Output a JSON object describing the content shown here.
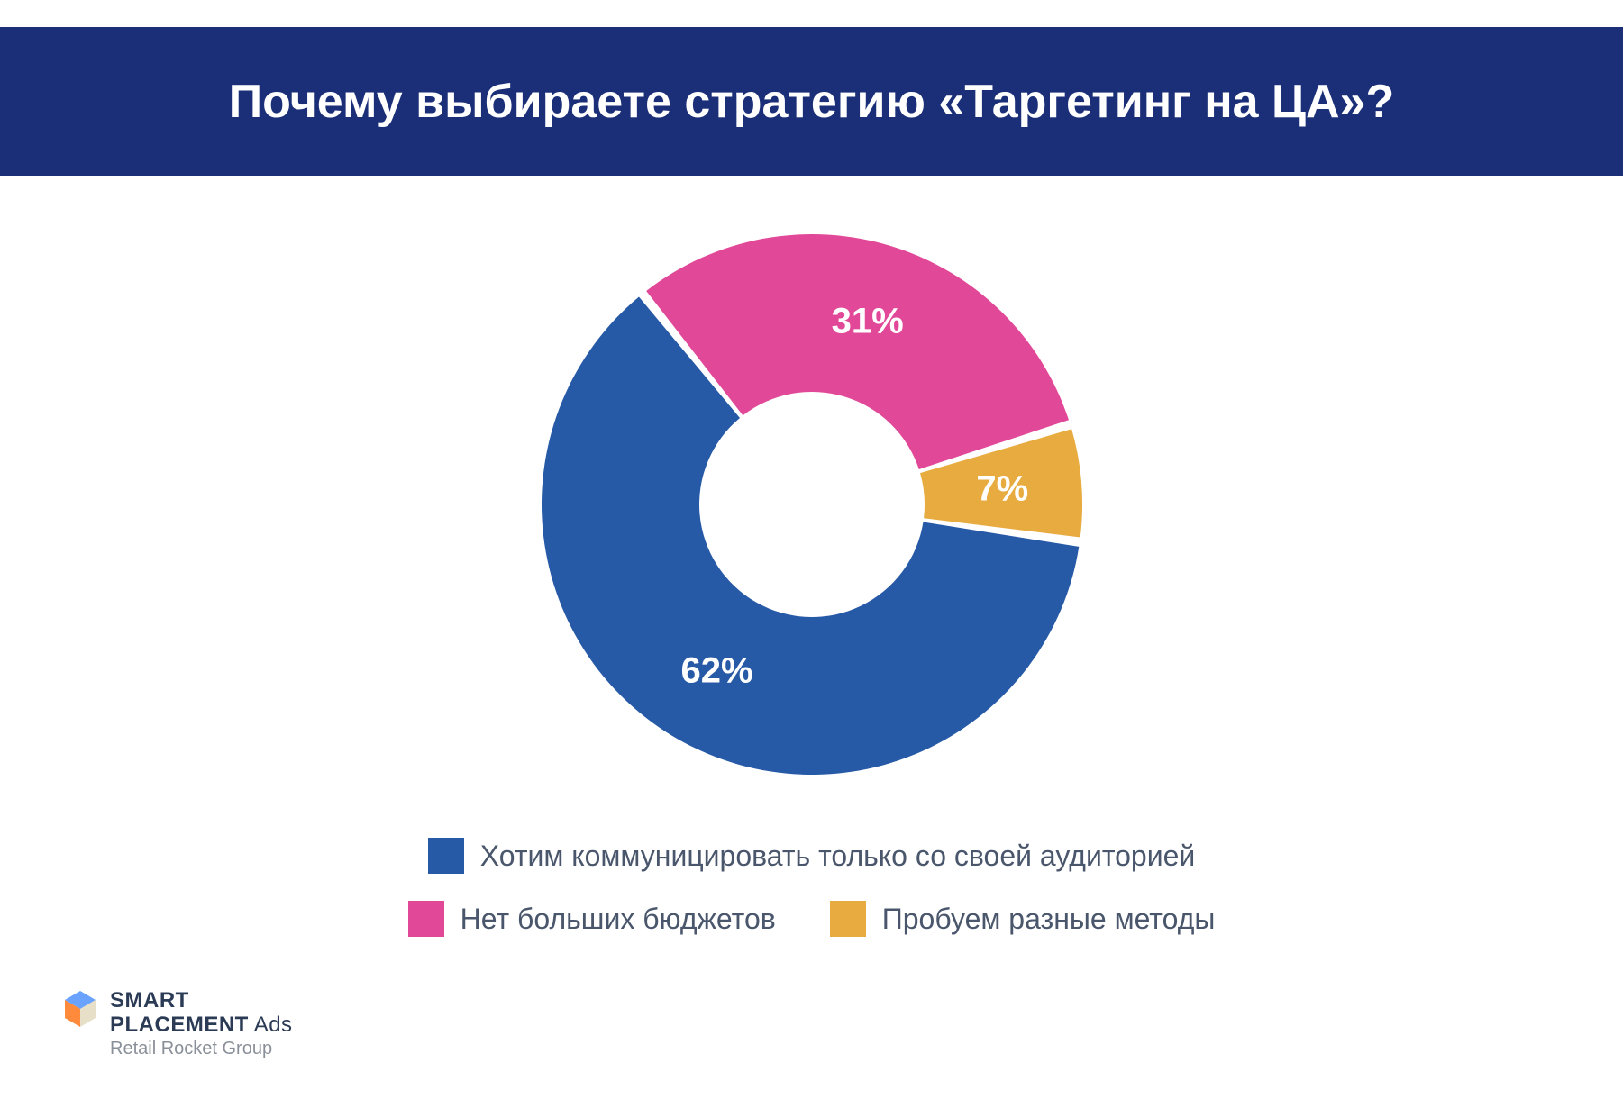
{
  "header": {
    "title": "Почему выбираете стратегию «Таргетинг на ЦА»?",
    "background_color": "#1b2f78",
    "text_color": "#ffffff",
    "title_fontsize": 52,
    "title_fontweight": 700
  },
  "chart": {
    "type": "donut",
    "outer_radius": 300,
    "inner_radius": 125,
    "background_color": "#ffffff",
    "label_fontsize": 40,
    "label_fontweight": 700,
    "label_color": "#ffffff",
    "slice_gap_deg": 2,
    "start_angle_deg": 98,
    "slices": [
      {
        "value": 62,
        "label": "62%",
        "color": "#2659a6",
        "legend": "Хотим коммуницировать только со своей аудиторией"
      },
      {
        "value": 31,
        "label": "31%",
        "color": "#e24898",
        "legend": "Нет больших бюджетов"
      },
      {
        "value": 7,
        "label": "7%",
        "color": "#e8ab3f",
        "legend": "Пробуем разные методы"
      }
    ]
  },
  "legend": {
    "swatch_size": 40,
    "text_color": "#49566b",
    "text_fontsize": 32
  },
  "logo": {
    "line1_a": "SMART",
    "line1_b": "PLACEMENT",
    "line1_c": " Ads",
    "line2": "Retail Rocket Group",
    "cube_colors": {
      "top": "#6aa3ff",
      "left": "#ff8a3c",
      "right": "#e8dfc8"
    }
  }
}
